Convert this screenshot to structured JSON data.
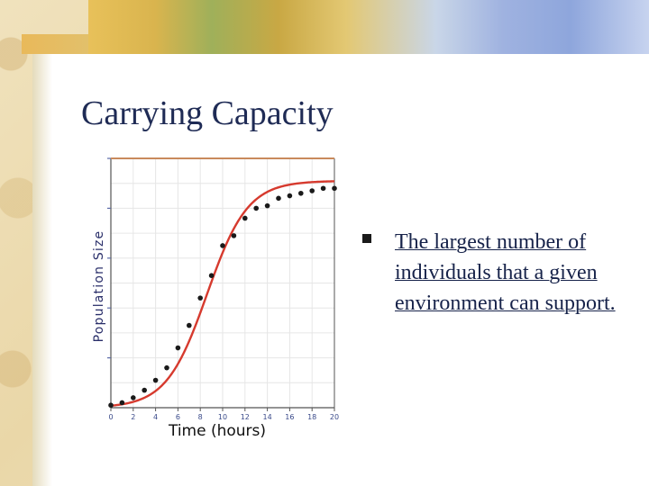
{
  "slide": {
    "title": "Carrying Capacity",
    "bullets": [
      "The largest number of individuals that a given environment can support."
    ]
  },
  "chart_data": {
    "type": "scatter",
    "title": "",
    "xlabel": "Time (hours)",
    "ylabel": "Population Size",
    "xlim": [
      0,
      20
    ],
    "ylim": [
      0,
      100
    ],
    "x_ticks": [
      "0",
      "2",
      "4",
      "6",
      "8",
      "10",
      "12",
      "14",
      "16",
      "18",
      "20"
    ],
    "grid": true,
    "points": {
      "x": [
        0,
        1,
        2,
        3,
        4,
        5,
        6,
        7,
        8,
        9,
        10,
        11,
        12,
        13,
        14,
        15,
        16,
        17,
        18,
        19,
        20
      ],
      "y": [
        1,
        2,
        4,
        7,
        11,
        16,
        24,
        33,
        44,
        53,
        65,
        69,
        76,
        80,
        81,
        84,
        85,
        86,
        87,
        88,
        88
      ]
    },
    "curve": {
      "type": "logistic",
      "carrying_capacity": 91,
      "growth_rate": 0.55,
      "midpoint": 8.6
    },
    "colors": {
      "points": "#1a1a1a",
      "curve": "#d63a2e",
      "grid": "#e6e6e6",
      "capacity_line": "#c98a5c"
    }
  }
}
